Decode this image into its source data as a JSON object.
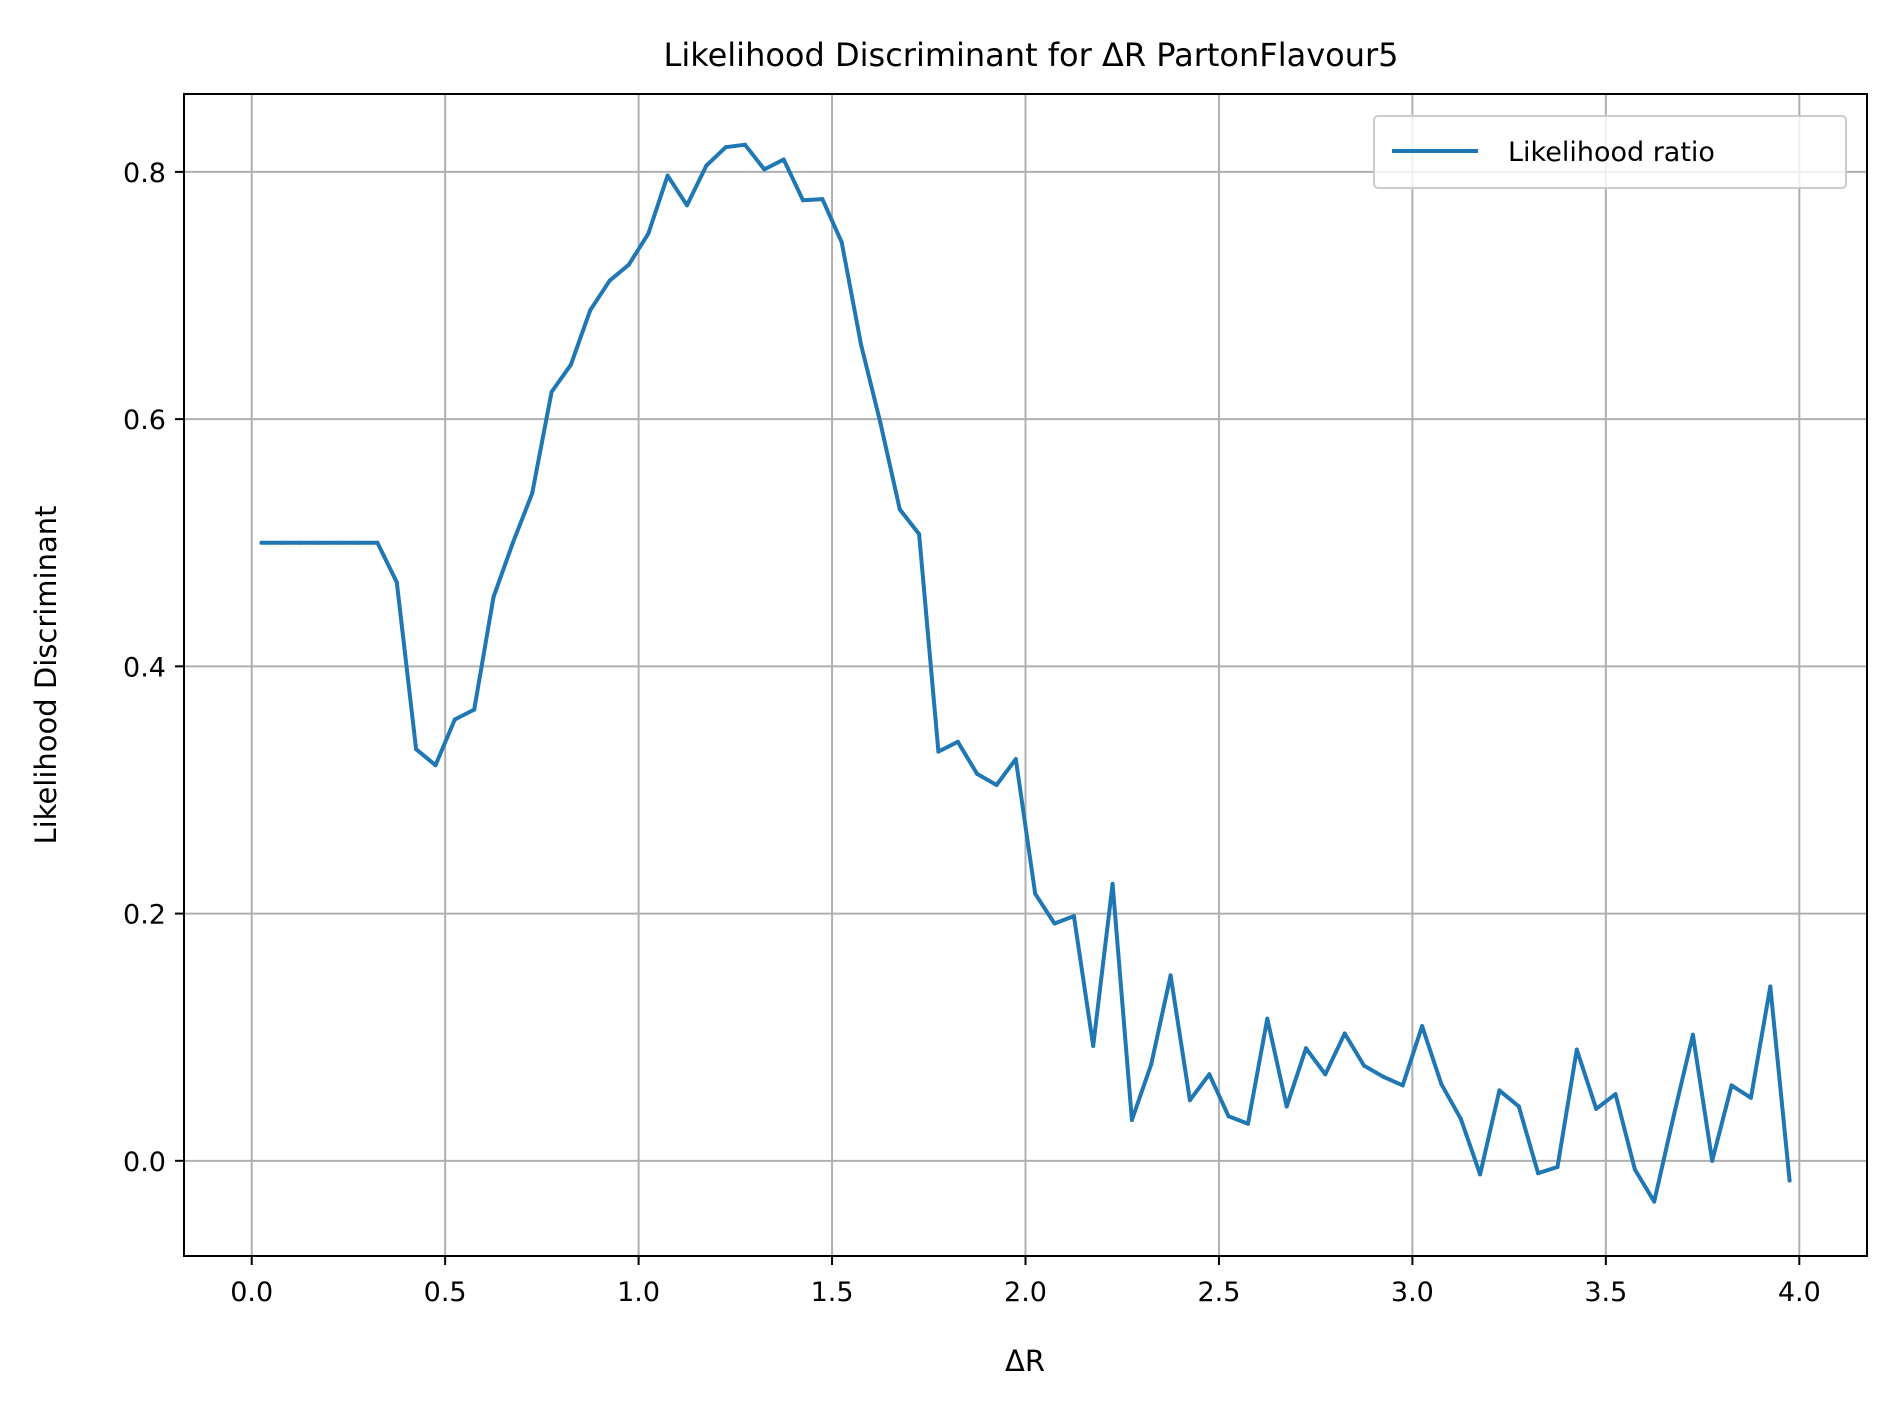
{
  "chart_data": {
    "type": "line",
    "title": "Likelihood Discriminant for ΔR PartonFlavour5",
    "xlabel": "ΔR",
    "ylabel": "Likelihood Discriminant",
    "xlim": [
      -0.175,
      4.175
    ],
    "ylim": [
      -0.077,
      0.863
    ],
    "xticks": [
      "0.0",
      "0.5",
      "1.0",
      "1.5",
      "2.0",
      "2.5",
      "3.0",
      "3.5",
      "4.0"
    ],
    "yticks": [
      "0.0",
      "0.2",
      "0.4",
      "0.6",
      "0.8"
    ],
    "grid": true,
    "legend_position": "top-right",
    "series": [
      {
        "name": "Likelihood ratio",
        "color": "#1f77b4",
        "x": [
          0.025,
          0.075,
          0.125,
          0.175,
          0.225,
          0.275,
          0.325,
          0.375,
          0.425,
          0.475,
          0.525,
          0.575,
          0.625,
          0.675,
          0.725,
          0.775,
          0.825,
          0.875,
          0.925,
          0.975,
          1.025,
          1.075,
          1.125,
          1.175,
          1.225,
          1.275,
          1.325,
          1.375,
          1.425,
          1.475,
          1.525,
          1.575,
          1.625,
          1.675,
          1.725,
          1.775,
          1.825,
          1.875,
          1.925,
          1.975,
          2.025,
          2.075,
          2.125,
          2.175,
          2.225,
          2.275,
          2.325,
          2.375,
          2.425,
          2.475,
          2.525,
          2.575,
          2.625,
          2.675,
          2.725,
          2.775,
          2.825,
          2.875,
          2.925,
          2.975,
          3.025,
          3.075,
          3.125,
          3.175,
          3.225,
          3.275,
          3.325,
          3.375,
          3.425,
          3.475,
          3.525,
          3.575,
          3.625,
          3.675,
          3.725,
          3.775,
          3.825,
          3.875,
          3.925,
          3.975
        ],
        "y": [
          0.5,
          0.5,
          0.5,
          0.5,
          0.5,
          0.5,
          0.5,
          0.468,
          0.333,
          0.32,
          0.357,
          0.365,
          0.456,
          0.5,
          0.54,
          0.622,
          0.644,
          0.688,
          0.712,
          0.725,
          0.75,
          0.797,
          0.773,
          0.805,
          0.82,
          0.822,
          0.802,
          0.81,
          0.777,
          0.778,
          0.743,
          0.66,
          0.597,
          0.527,
          0.507,
          0.331,
          0.339,
          0.313,
          0.304,
          0.325,
          0.216,
          0.192,
          0.198,
          0.093,
          0.224,
          0.033,
          0.078,
          0.15,
          0.049,
          0.07,
          0.036,
          0.03,
          0.115,
          0.044,
          0.091,
          0.07,
          0.103,
          0.077,
          0.068,
          0.061,
          0.109,
          0.062,
          0.034,
          -0.011,
          0.057,
          0.044,
          -0.01,
          -0.005,
          0.09,
          0.042,
          0.054,
          -0.007,
          -0.033,
          0.036,
          0.102,
          0.0,
          0.061,
          0.051,
          0.141,
          -0.016
        ]
      }
    ]
  }
}
